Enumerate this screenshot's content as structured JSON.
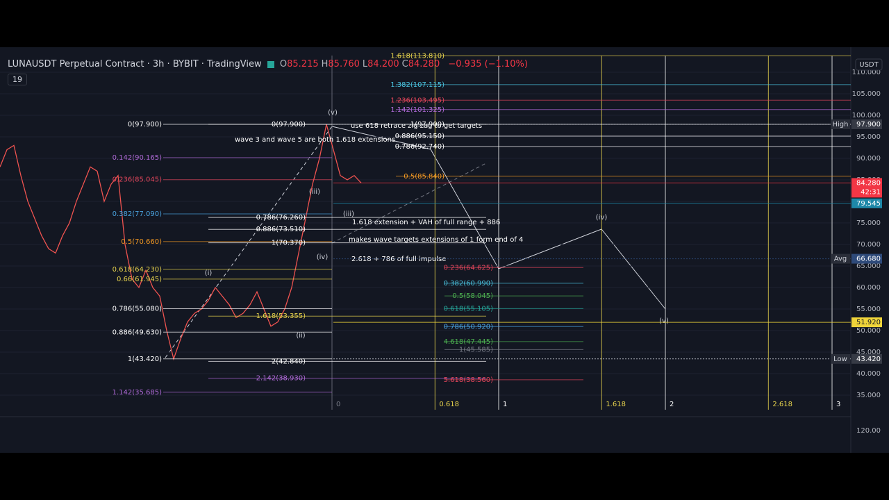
{
  "header": {
    "symbol": "LUNAUSDT Perpetual Contract · 3h · BYBIT · TradingView",
    "ohlc": [
      {
        "k": "O",
        "v": "85.215"
      },
      {
        "k": "H",
        "v": "85.760"
      },
      {
        "k": "L",
        "v": "84.200"
      },
      {
        "k": "C",
        "v": "84.280"
      }
    ],
    "change": "−0.935 (−1.10%)",
    "indicators": "19"
  },
  "price_axis": {
    "currency": "USDT",
    "ylim": [
      30,
      115.8
    ],
    "ticks": [
      {
        "value": 35,
        "label": "35.000"
      },
      {
        "value": 40,
        "label": "40.000"
      },
      {
        "value": 45,
        "label": "45.000"
      },
      {
        "value": 50,
        "label": "50.000"
      },
      {
        "value": 55,
        "label": "55.000"
      },
      {
        "value": 60,
        "label": "60.000"
      },
      {
        "value": 65,
        "label": "65.000"
      },
      {
        "value": 70,
        "label": "70.000"
      },
      {
        "value": 75,
        "label": "75.000"
      },
      {
        "value": 80,
        "label": "80.000"
      },
      {
        "value": 85,
        "label": "85.000"
      },
      {
        "value": 90,
        "label": "90.000"
      },
      {
        "value": 95,
        "label": "95.000"
      },
      {
        "value": 100,
        "label": "100.000"
      },
      {
        "value": 105,
        "label": "105.000"
      },
      {
        "value": 110,
        "label": "110.000"
      }
    ],
    "volume_label": "120.00",
    "badges": [
      {
        "name": "High",
        "value": 97.9,
        "label": "97.900",
        "color": "#363a45"
      },
      {
        "name": "Avg",
        "value": 66.68,
        "label": "66.680",
        "color": "#2e4a7a"
      },
      {
        "name": "Low",
        "value": 43.42,
        "label": "43.420",
        "color": "#363a45"
      },
      {
        "value": 79.545,
        "label": "79.545",
        "color": "#1e88a8"
      },
      {
        "value": 51.92,
        "label": "51.920",
        "color": "#f0d43a"
      },
      {
        "value": 84.28,
        "label": "84.280",
        "color": "#f23645",
        "timer": "42:31"
      }
    ]
  },
  "price_path": [
    88,
    92,
    93,
    86,
    80,
    76,
    72,
    69,
    68,
    72,
    75,
    80,
    84,
    88,
    87,
    80,
    84,
    86,
    70,
    62,
    60,
    64,
    60,
    58,
    50,
    43.42,
    48,
    52,
    54,
    55,
    57,
    60,
    58,
    56,
    53,
    54,
    56,
    59,
    55,
    51,
    52,
    55,
    60,
    68,
    76,
    84,
    90,
    97.9,
    92,
    86,
    85,
    86,
    84.28
  ],
  "fib_left": [
    {
      "label": "0(97.900)",
      "price": 97.9,
      "color": "#ffffff"
    },
    {
      "label": "0.142(90.165)",
      "price": 90.165,
      "color": "#b06ad8"
    },
    {
      "label": "0.236(85.045)",
      "price": 85.045,
      "color": "#e0455a"
    },
    {
      "label": "0.382(77.090)",
      "price": 77.09,
      "color": "#4aa3df"
    },
    {
      "label": "0.5(70.660)",
      "price": 70.66,
      "color": "#f59a23"
    },
    {
      "label": "0.618(64.230)",
      "price": 64.23,
      "color": "#e8d44d"
    },
    {
      "label": "0.66(61.945)",
      "price": 61.945,
      "color": "#e8d44d"
    },
    {
      "label": "0.786(55.080)",
      "price": 55.08,
      "color": "#ffffff"
    },
    {
      "label": "0.886(49.630)",
      "price": 49.63,
      "color": "#ffffff"
    },
    {
      "label": "1(43.420)",
      "price": 43.42,
      "color": "#ffffff"
    },
    {
      "label": "1.142(35.685)",
      "price": 35.685,
      "color": "#b06ad8"
    }
  ],
  "fib_mid": [
    {
      "label": "0(97.900)",
      "price": 97.9,
      "color": "#ffffff"
    },
    {
      "label": "0.786(76.260)",
      "price": 76.26,
      "color": "#ffffff"
    },
    {
      "label": "0.886(73.510)",
      "price": 73.51,
      "color": "#ffffff"
    },
    {
      "label": "1(70.370)",
      "price": 70.37,
      "color": "#ffffff"
    },
    {
      "label": "1.618(53.355)",
      "price": 53.355,
      "color": "#e8d44d"
    },
    {
      "label": "2(42.840)",
      "price": 42.84,
      "color": "#ffffff"
    },
    {
      "label": "2.142(38.930)",
      "price": 38.93,
      "color": "#b06ad8"
    }
  ],
  "fib_right_upper": [
    {
      "label": "1.618(113.810)",
      "price": 113.81,
      "color": "#e8d44d"
    },
    {
      "label": "1.382(107.115)",
      "price": 107.115,
      "color": "#4ac3df"
    },
    {
      "label": "1.236(103.495)",
      "price": 103.495,
      "color": "#e0455a"
    },
    {
      "label": "1.142(101.325)",
      "price": 101.325,
      "color": "#b06ad8"
    },
    {
      "label": "1(97.900)",
      "price": 97.9,
      "color": "#ffffff"
    },
    {
      "label": "0.886(95.150)",
      "price": 95.15,
      "color": "#ffffff"
    },
    {
      "label": "0.786(92.740)",
      "price": 92.74,
      "color": "#ffffff"
    },
    {
      "label": "0.5(85.840)",
      "price": 85.84,
      "color": "#f59a23"
    }
  ],
  "fib_right_lower": [
    {
      "label": "0.236(64.625)",
      "price": 64.625,
      "color": "#e0455a"
    },
    {
      "label": "0.382(60.990)",
      "price": 60.99,
      "color": "#4ac3df"
    },
    {
      "label": "0.5(58.045)",
      "price": 58.045,
      "color": "#4caf50"
    },
    {
      "label": "0.618(55.105)",
      "price": 55.105,
      "color": "#26a69a"
    },
    {
      "label": "0.786(50.920)",
      "price": 50.92,
      "color": "#4aa3df"
    },
    {
      "label": "4.618(47.445)",
      "price": 47.445,
      "color": "#4caf50"
    },
    {
      "label": "1(45.585)",
      "price": 45.585,
      "color": "#787b86"
    },
    {
      "label": "5.618(38.560)",
      "price": 38.56,
      "color": "#e0455a"
    }
  ],
  "fib_time": {
    "ratios": [
      0,
      0.618,
      1,
      1.618,
      2,
      2.618,
      3
    ],
    "colors": [
      "#787b86",
      "#e8d44d",
      "#ffffff",
      "#e8d44d",
      "#ffffff",
      "#e8d44d",
      "#ffffff"
    ]
  },
  "waves": [
    "(i)",
    "(ii)",
    "(iii)",
    "(iv)",
    "(v)",
    "(iii)",
    "(iv)",
    "(v)"
  ],
  "notes": [
    "use 618 retrace zig zag to get targets",
    "wave 3 and wave 5 are both 1.618 extensions",
    "1.618 extension + VAH of full range + 886",
    "2.618 + 786 of full impulse",
    "makes wave targets extensions of 1 form end of 4"
  ]
}
